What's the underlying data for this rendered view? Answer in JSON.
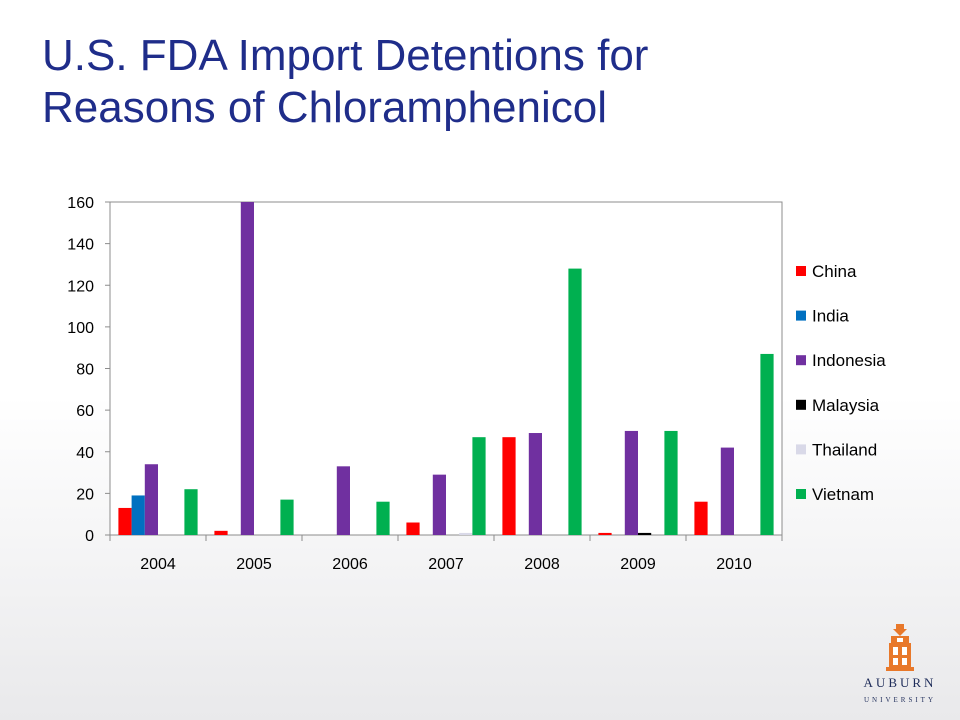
{
  "slide": {
    "title_line1": "U.S. FDA Import Detentions for",
    "title_line2": "Reasons of Chloramphenicol"
  },
  "colors": {
    "title": "#1f2d8a",
    "logo": "#e8782a",
    "logo_text": "#1f2d5a"
  },
  "logo": {
    "word": "AUBURN",
    "subword": "UNIVERSITY"
  },
  "chart_data": {
    "type": "bar",
    "title": "",
    "xlabel": "",
    "ylabel": "",
    "categories": [
      "2004",
      "2005",
      "2006",
      "2007",
      "2008",
      "2009",
      "2010"
    ],
    "ylim": [
      0,
      160
    ],
    "yticks": [
      0,
      20,
      40,
      60,
      80,
      100,
      120,
      140,
      160
    ],
    "grid": false,
    "legend_position": "right",
    "series": [
      {
        "name": "China",
        "color": "#ff0000",
        "values": [
          13,
          2,
          0,
          6,
          47,
          1,
          16
        ]
      },
      {
        "name": "India",
        "color": "#0070c0",
        "values": [
          19,
          0,
          0,
          0,
          0,
          0,
          0
        ]
      },
      {
        "name": "Indonesia",
        "color": "#7030a0",
        "values": [
          34,
          160,
          33,
          29,
          49,
          50,
          42
        ]
      },
      {
        "name": "Malaysia",
        "color": "#000000",
        "values": [
          0,
          0,
          0,
          0,
          0,
          1,
          0
        ]
      },
      {
        "name": "Thailand",
        "color": "#d9d9e8",
        "values": [
          0,
          0,
          0,
          1,
          0,
          0,
          0
        ]
      },
      {
        "name": "Vietnam",
        "color": "#00b050",
        "values": [
          22,
          17,
          16,
          47,
          128,
          50,
          87
        ]
      }
    ]
  }
}
